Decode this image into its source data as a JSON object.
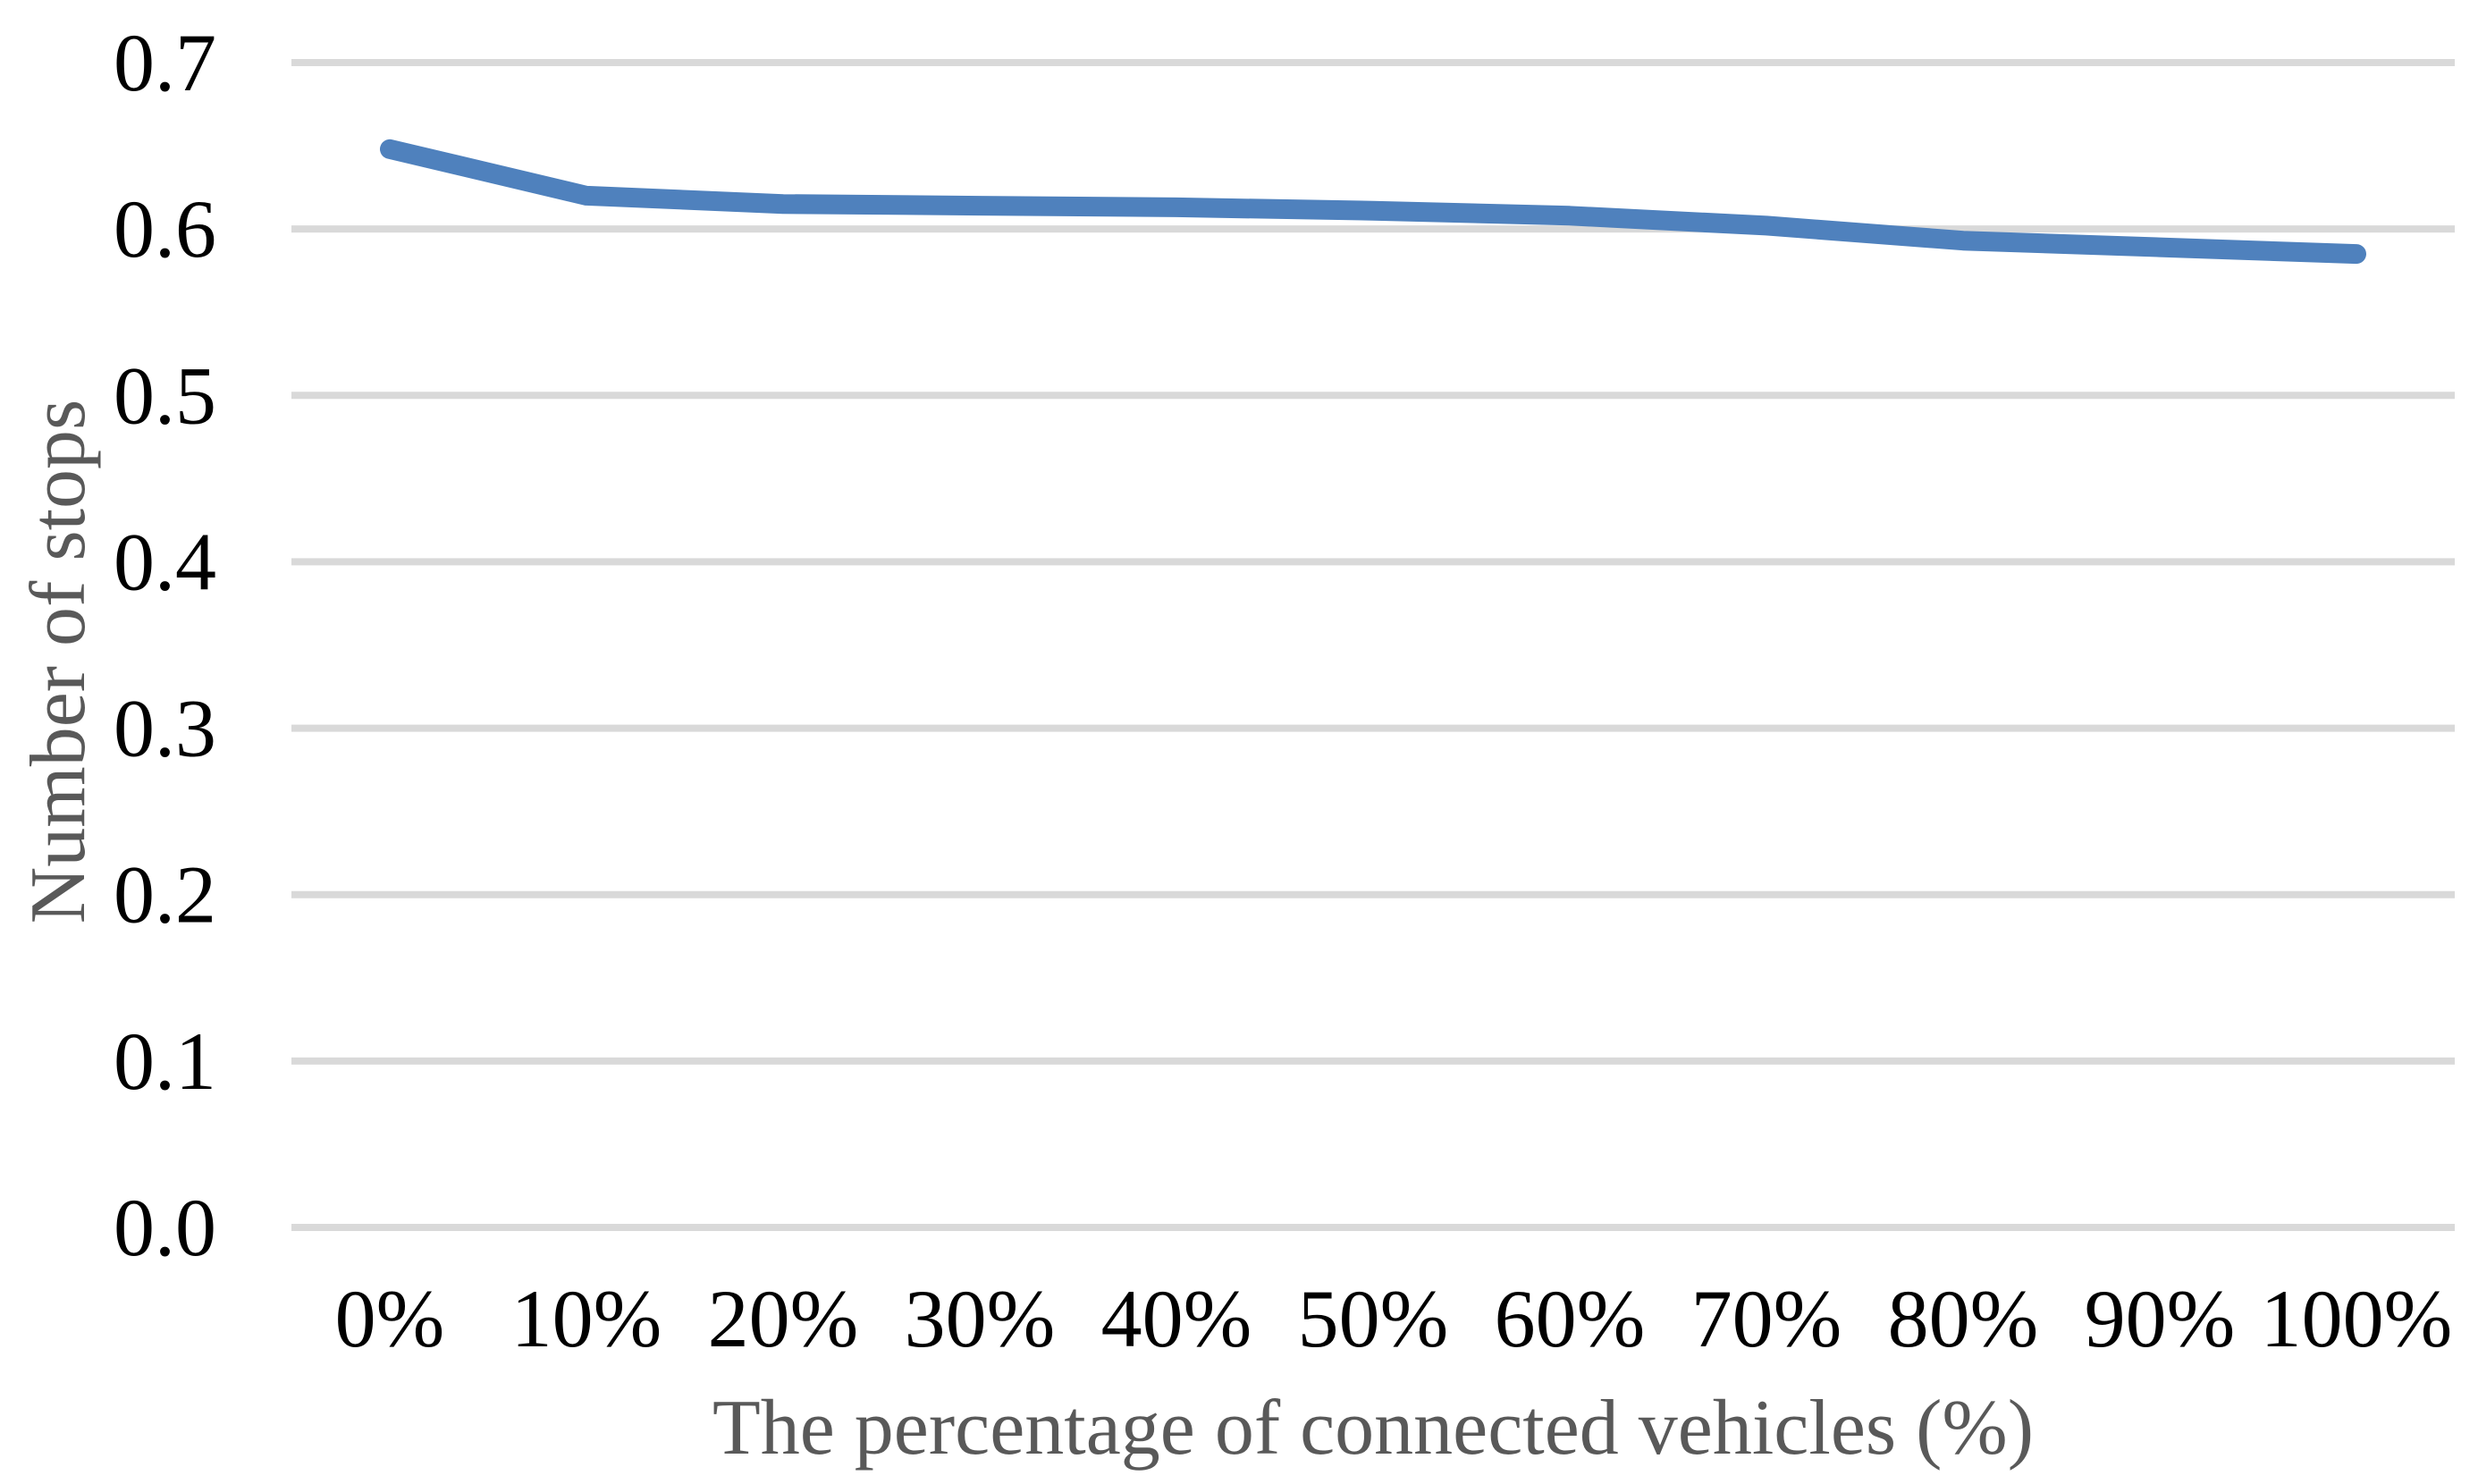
{
  "chart": {
    "background_color": "#ffffff",
    "line_color": "#4F81BD",
    "gridline_color": "#D9D9D9",
    "tick_label_color": "#000000",
    "axis_title_color": "#595959"
  },
  "chart_data": {
    "type": "line",
    "title": "",
    "xlabel": "The percentage of connected vehicles (%)",
    "ylabel": "Number of stops",
    "categories": [
      "0%",
      "10%",
      "20%",
      "30%",
      "40%",
      "50%",
      "60%",
      "70%",
      "80%",
      "90%",
      "100%"
    ],
    "series": [
      {
        "name": "Number of stops",
        "values": [
          0.648,
          0.62,
          0.615,
          0.614,
          0.613,
          0.611,
          0.608,
          0.602,
          0.593,
          0.589,
          0.585
        ]
      }
    ],
    "ylim": [
      0.0,
      0.7
    ],
    "ytick_step": 0.1,
    "ytick_labels": [
      "0.0",
      "0.1",
      "0.2",
      "0.3",
      "0.4",
      "0.5",
      "0.6",
      "0.7"
    ],
    "grid": "horizontal",
    "legend": "none",
    "markers": "none"
  }
}
